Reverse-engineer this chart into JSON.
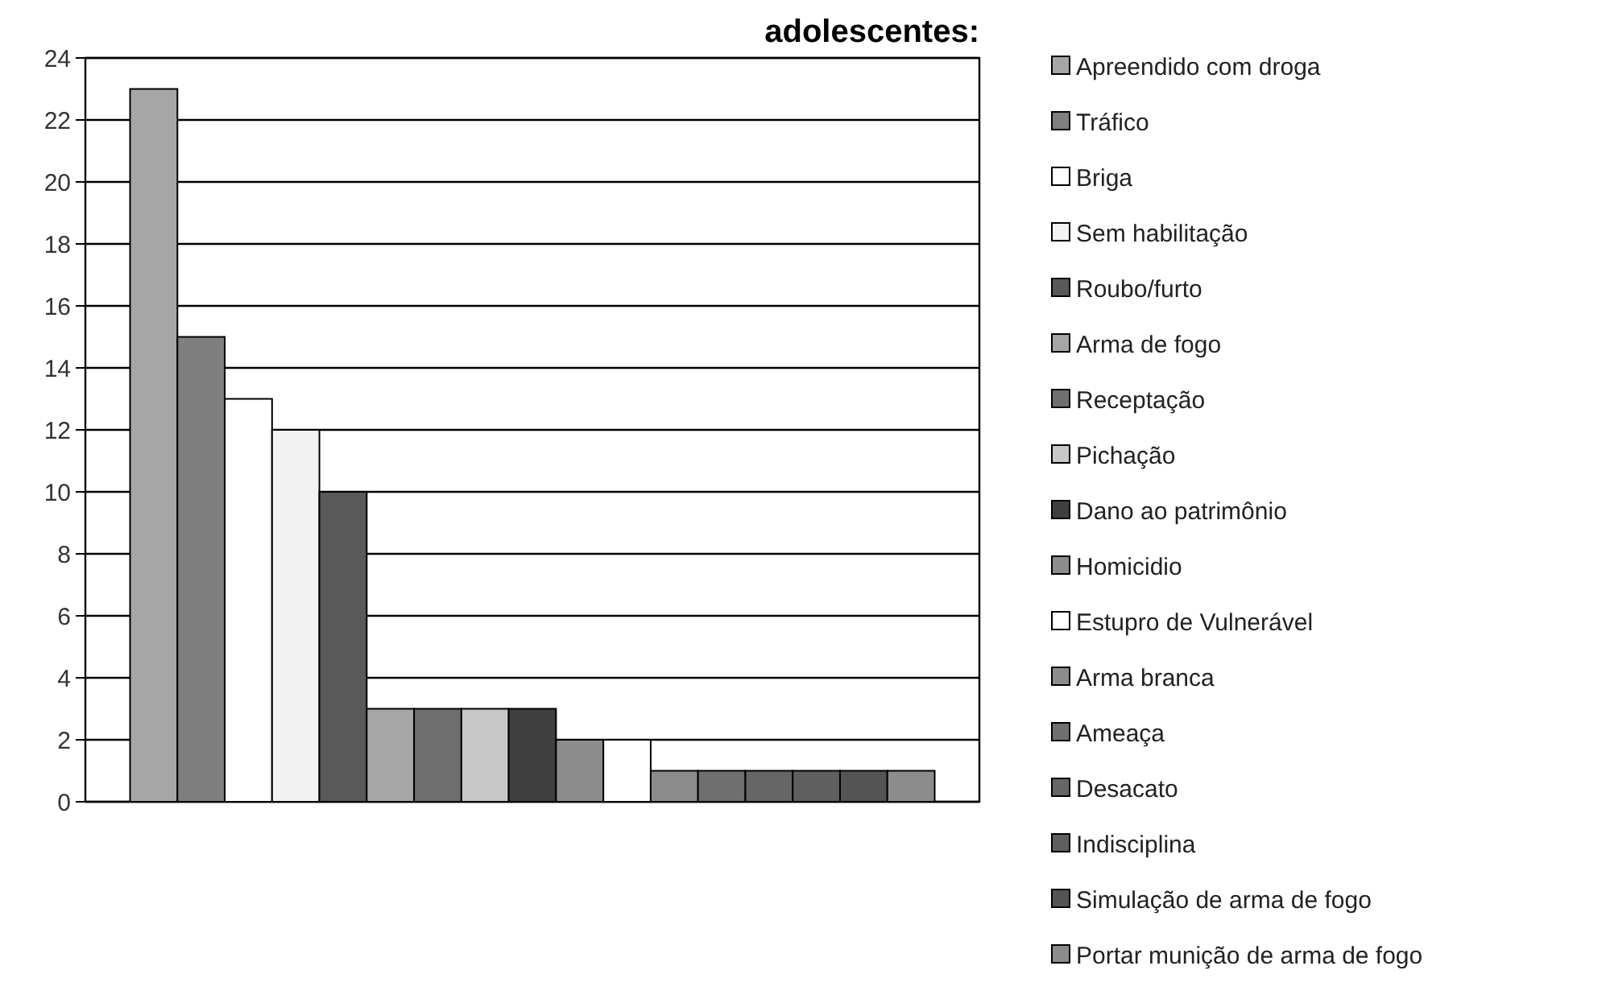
{
  "chart_data": {
    "type": "bar",
    "title": "adolescentes:",
    "categories": [
      null
    ],
    "series": [
      {
        "name": "Apreendido com droga",
        "color": "#a6a6a6",
        "values": [
          23
        ]
      },
      {
        "name": "Tráfico",
        "color": "#7f7f7f",
        "values": [
          15
        ]
      },
      {
        "name": "Briga",
        "color": "#ffffff",
        "values": [
          13
        ]
      },
      {
        "name": "Sem habilitação",
        "color": "#f2f2f2",
        "values": [
          12
        ]
      },
      {
        "name": "Roubo/furto",
        "color": "#595959",
        "values": [
          10
        ]
      },
      {
        "name": "Arma de fogo",
        "color": "#a6a6a6",
        "values": [
          3
        ]
      },
      {
        "name": "Receptação",
        "color": "#6f6f6f",
        "values": [
          3
        ]
      },
      {
        "name": "Pichação",
        "color": "#c8c8c8",
        "values": [
          3
        ]
      },
      {
        "name": "Dano ao patrimônio",
        "color": "#404040",
        "values": [
          3
        ]
      },
      {
        "name": "Homicidio",
        "color": "#8c8c8c",
        "values": [
          2
        ]
      },
      {
        "name": "Estupro de Vulnerável",
        "color": "#ffffff",
        "values": [
          2
        ]
      },
      {
        "name": "Arma branca",
        "color": "#8c8c8c",
        "values": [
          1
        ]
      },
      {
        "name": "Ameaça",
        "color": "#6f6f6f",
        "values": [
          1
        ]
      },
      {
        "name": "Desacato",
        "color": "#666666",
        "values": [
          1
        ]
      },
      {
        "name": "Indisciplina",
        "color": "#5f5f5f",
        "values": [
          1
        ]
      },
      {
        "name": "Simulação de arma de fogo",
        "color": "#545454",
        "values": [
          1
        ]
      },
      {
        "name": "Portar munição de arma de fogo",
        "color": "#8c8c8c",
        "values": [
          1
        ]
      }
    ],
    "ylim": [
      0,
      24
    ],
    "yticks": [
      0,
      2,
      4,
      6,
      8,
      10,
      12,
      14,
      16,
      18,
      20,
      22,
      24
    ],
    "grid": "y",
    "legend": "right"
  }
}
